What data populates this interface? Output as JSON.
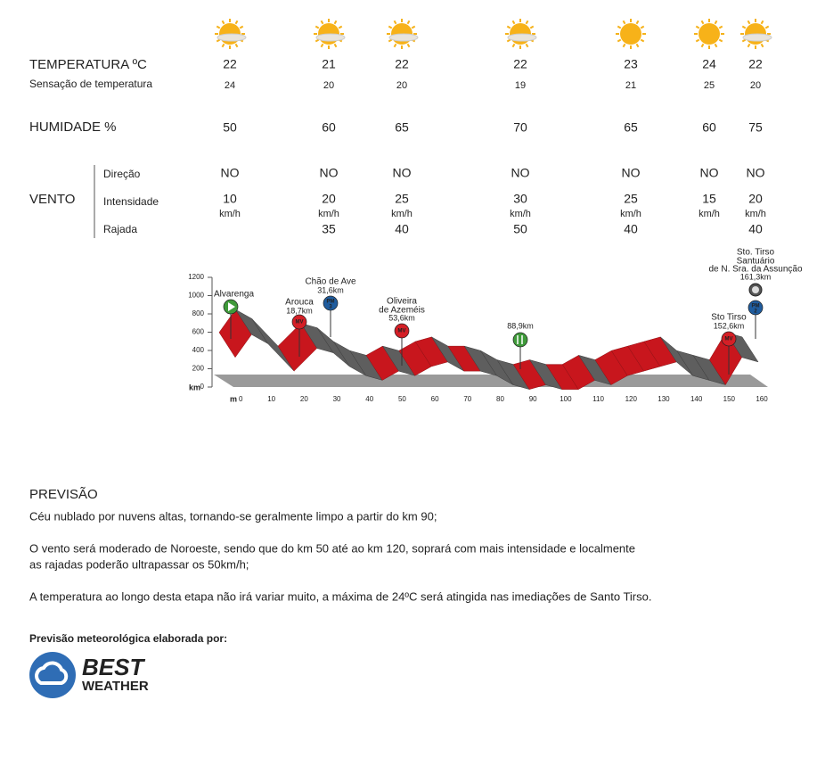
{
  "labels": {
    "temperature": "TEMPERATURA  ºC",
    "feel": "Sensação de temperatura",
    "humidity": "HUMIDADE %",
    "wind": "VENTO",
    "direction": "Direção",
    "speed": "Intensidade",
    "gust": "Rajada"
  },
  "weather": {
    "speed_unit": "km/h",
    "columns": [
      {
        "sky": "partly",
        "temp": 22,
        "feel": 24,
        "humidity": 50,
        "dir": "NO",
        "speed": 10
      },
      {
        "sky": "partly",
        "temp": 21,
        "feel": 20,
        "humidity": 60,
        "dir": "NO",
        "speed": 20,
        "gust": 35
      },
      {
        "sky": "partly",
        "temp": 22,
        "feel": 20,
        "humidity": 65,
        "dir": "NO",
        "speed": 25,
        "gust": 40
      },
      {
        "sky": "partly",
        "temp": 22,
        "feel": 19,
        "humidity": 70,
        "dir": "NO",
        "speed": 30,
        "gust": 50
      },
      {
        "sky": "sun",
        "temp": 23,
        "feel": 21,
        "humidity": 65,
        "dir": "NO",
        "speed": 25,
        "gust": 40
      },
      {
        "sky": "sun",
        "temp": 24,
        "feel": 25,
        "humidity": 60,
        "dir": "NO",
        "speed": 15
      },
      {
        "sky": "partly",
        "temp": 22,
        "feel": 20,
        "humidity": 75,
        "dir": "NO",
        "speed": 20,
        "gust": 40
      }
    ]
  },
  "profile": {
    "y_axis_label": "km",
    "x_axis_label": "m",
    "ylim": [
      0,
      1200
    ],
    "yticks": [
      0,
      200,
      400,
      600,
      800,
      1000,
      1200
    ],
    "xlim": [
      0,
      160
    ],
    "xticks": [
      0,
      10,
      20,
      30,
      40,
      50,
      60,
      70,
      80,
      90,
      100,
      110,
      120,
      130,
      140,
      150,
      160
    ],
    "km": [
      0,
      5,
      10,
      18,
      25,
      30,
      35,
      40,
      45,
      50,
      55,
      60,
      65,
      70,
      75,
      80,
      85,
      90,
      95,
      100,
      105,
      110,
      115,
      120,
      125,
      130,
      135,
      140,
      145,
      150,
      155,
      160
    ],
    "elevation": [
      500,
      750,
      650,
      350,
      600,
      550,
      400,
      300,
      250,
      350,
      300,
      400,
      450,
      350,
      350,
      300,
      200,
      150,
      200,
      150,
      150,
      250,
      200,
      300,
      350,
      400,
      450,
      300,
      250,
      200,
      500,
      450
    ],
    "points": [
      {
        "label": [
          "Alvarenga"
        ],
        "icon": "start"
      },
      {
        "label": [
          "Arouca"
        ],
        "km_label": "18,7km",
        "badge": "MV"
      },
      {
        "label": [
          "Chão de Ave"
        ],
        "km_label": "31,6km",
        "badge": "PM",
        "badge_sub": "3"
      },
      {
        "label": [
          "Oliveira",
          "de Azeméis"
        ],
        "km_label": "53,6km",
        "badge": "MV"
      },
      {
        "km_label": "88,9km",
        "icon": "food"
      },
      {
        "label": [
          "Sto Tirso"
        ],
        "km_label": "152,6km",
        "badge": "MV"
      },
      {
        "label": [
          "Sto. Tirso",
          "Santuário",
          "de N. Sra. da Assunção"
        ],
        "km_label": "161,3km",
        "icon": "finish",
        "badge": "PM",
        "badge_sub": "2"
      }
    ]
  },
  "forecast": {
    "title": "PREVISÃO",
    "paragraphs": [
      [
        "Céu nublado por nuvens altas, tornando-se geralmente limpo a partir do km 90;"
      ],
      [
        "O vento será moderado de Noroeste, sendo que do km 50 até ao km 120, soprará com mais intensidade e localmente",
        "as rajadas poderão ultrapassar os 50km/h;"
      ],
      [
        "A temperatura ao longo desta etapa não irá variar muito, a máxima de 24ºC será atingida nas imediações de Santo Tirso."
      ]
    ]
  },
  "credit": {
    "text": "Previsão meteorológica elaborada por:",
    "logo_top": "BEST",
    "logo_bottom": "WEATHER"
  }
}
